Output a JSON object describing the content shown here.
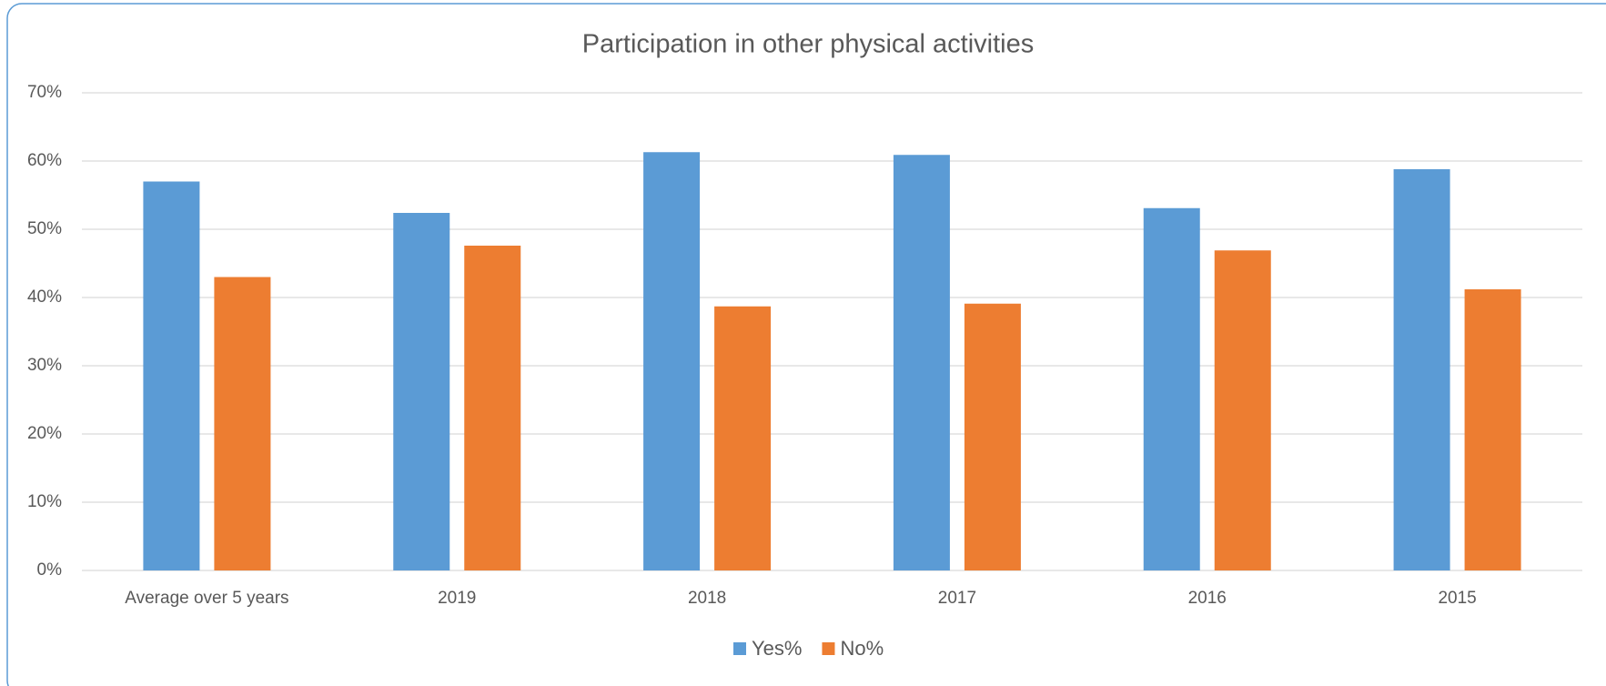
{
  "chart_data": {
    "type": "bar",
    "title": "Participation in other physical activities",
    "categories": [
      "Average over 5 years",
      "2019",
      "2018",
      "2017",
      "2016",
      "2015"
    ],
    "series": [
      {
        "name": "Yes%",
        "color": "#5b9bd5",
        "values": [
          57,
          52.4,
          61.3,
          60.9,
          53.1,
          58.8
        ]
      },
      {
        "name": "No%",
        "color": "#ed7d31",
        "values": [
          43,
          47.6,
          38.7,
          39.1,
          46.9,
          41.2
        ]
      }
    ],
    "ylim": [
      0,
      70
    ],
    "yticks": [
      {
        "value": 0,
        "label": "0%"
      },
      {
        "value": 10,
        "label": "10%"
      },
      {
        "value": 20,
        "label": "20%"
      },
      {
        "value": 30,
        "label": "30%"
      },
      {
        "value": 40,
        "label": "40%"
      },
      {
        "value": 50,
        "label": "50%"
      },
      {
        "value": 60,
        "label": "60%"
      },
      {
        "value": 70,
        "label": "70%"
      }
    ],
    "grid": true,
    "legend": "bottom"
  }
}
